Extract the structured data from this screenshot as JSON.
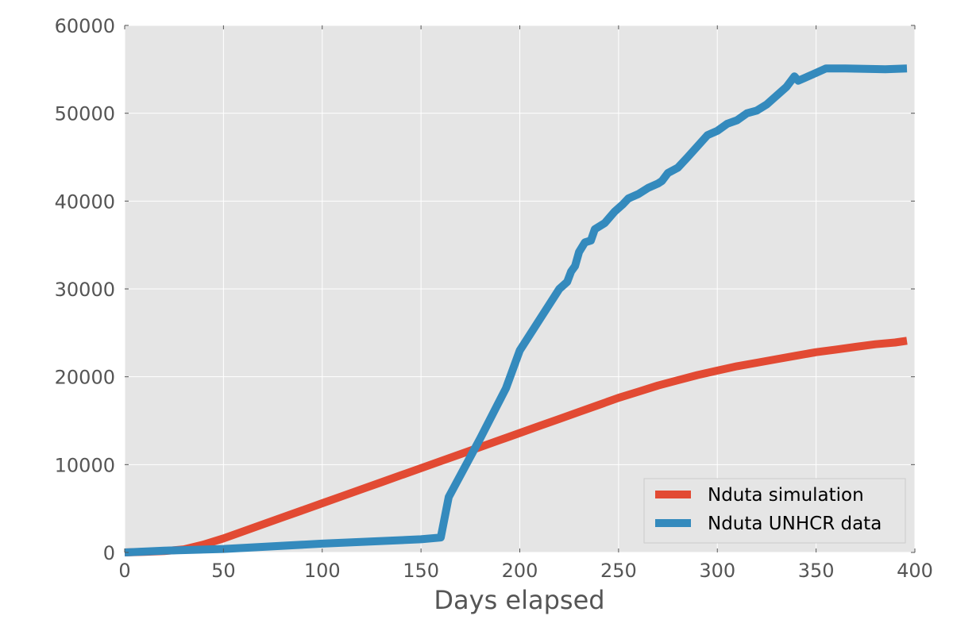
{
  "chart_data": {
    "type": "line",
    "title": "",
    "xlabel": "Days elapsed",
    "ylabel": "",
    "xlim": [
      0,
      400
    ],
    "ylim": [
      0,
      60000
    ],
    "xticks": [
      0,
      50,
      100,
      150,
      200,
      250,
      300,
      350,
      400
    ],
    "yticks": [
      0,
      10000,
      20000,
      30000,
      40000,
      50000,
      60000
    ],
    "grid": true,
    "legend_position": "lower-right",
    "colors": {
      "plot_background": "#e5e5e5",
      "grid": "#ffffff",
      "tick_text": "#555555"
    },
    "series": [
      {
        "name": "Nduta simulation",
        "color": "#e24a33",
        "points": [
          [
            0,
            0
          ],
          [
            10,
            60
          ],
          [
            20,
            150
          ],
          [
            30,
            350
          ],
          [
            40,
            900
          ],
          [
            50,
            1600
          ],
          [
            60,
            2400
          ],
          [
            70,
            3200
          ],
          [
            80,
            4000
          ],
          [
            90,
            4800
          ],
          [
            100,
            5600
          ],
          [
            110,
            6400
          ],
          [
            120,
            7200
          ],
          [
            130,
            8000
          ],
          [
            140,
            8800
          ],
          [
            150,
            9600
          ],
          [
            160,
            10400
          ],
          [
            170,
            11200
          ],
          [
            180,
            12000
          ],
          [
            190,
            12800
          ],
          [
            200,
            13600
          ],
          [
            210,
            14400
          ],
          [
            220,
            15200
          ],
          [
            230,
            16000
          ],
          [
            240,
            16800
          ],
          [
            250,
            17600
          ],
          [
            260,
            18300
          ],
          [
            270,
            19000
          ],
          [
            280,
            19600
          ],
          [
            290,
            20200
          ],
          [
            300,
            20700
          ],
          [
            310,
            21200
          ],
          [
            320,
            21600
          ],
          [
            330,
            22000
          ],
          [
            340,
            22400
          ],
          [
            350,
            22800
          ],
          [
            360,
            23100
          ],
          [
            370,
            23400
          ],
          [
            380,
            23700
          ],
          [
            390,
            23900
          ],
          [
            396,
            24100
          ]
        ]
      },
      {
        "name": "Nduta UNHCR data",
        "color": "#348abd",
        "points": [
          [
            0,
            0
          ],
          [
            20,
            200
          ],
          [
            50,
            400
          ],
          [
            100,
            1000
          ],
          [
            150,
            1500
          ],
          [
            160,
            1700
          ],
          [
            164,
            6300
          ],
          [
            180,
            13000
          ],
          [
            193,
            18700
          ],
          [
            200,
            23000
          ],
          [
            210,
            26500
          ],
          [
            220,
            30000
          ],
          [
            224,
            30800
          ],
          [
            226,
            32000
          ],
          [
            228,
            32600
          ],
          [
            230,
            34200
          ],
          [
            233,
            35300
          ],
          [
            236,
            35500
          ],
          [
            238,
            36800
          ],
          [
            243,
            37500
          ],
          [
            248,
            38800
          ],
          [
            252,
            39600
          ],
          [
            255,
            40300
          ],
          [
            260,
            40800
          ],
          [
            265,
            41500
          ],
          [
            270,
            42000
          ],
          [
            272,
            42300
          ],
          [
            275,
            43200
          ],
          [
            280,
            43800
          ],
          [
            285,
            45000
          ],
          [
            295,
            47500
          ],
          [
            300,
            48000
          ],
          [
            305,
            48800
          ],
          [
            310,
            49200
          ],
          [
            315,
            50000
          ],
          [
            320,
            50300
          ],
          [
            325,
            51000
          ],
          [
            330,
            52000
          ],
          [
            335,
            53000
          ],
          [
            339,
            54200
          ],
          [
            341,
            53700
          ],
          [
            345,
            54100
          ],
          [
            350,
            54600
          ],
          [
            355,
            55100
          ],
          [
            365,
            55100
          ],
          [
            385,
            55000
          ],
          [
            396,
            55100
          ]
        ]
      }
    ]
  }
}
